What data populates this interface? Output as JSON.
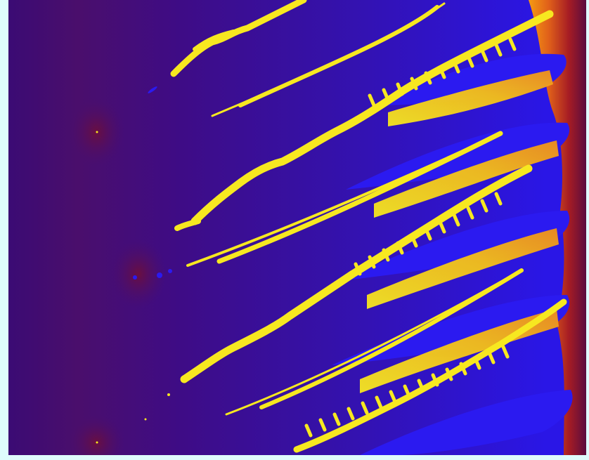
{
  "image": {
    "kind": "fractal-rendering",
    "palette": {
      "background_frame": "#dffcfc",
      "deep_purple": "#3a0a7a",
      "mid_purple": "#4a1290",
      "blue": "#2a14e8",
      "bright_blue": "#2b1af0",
      "yellow": "#f7e820",
      "orange": "#f59a12",
      "red_orange": "#d8401a",
      "dark_red": "#7a1030",
      "maroon": "#5a0c3e"
    }
  }
}
